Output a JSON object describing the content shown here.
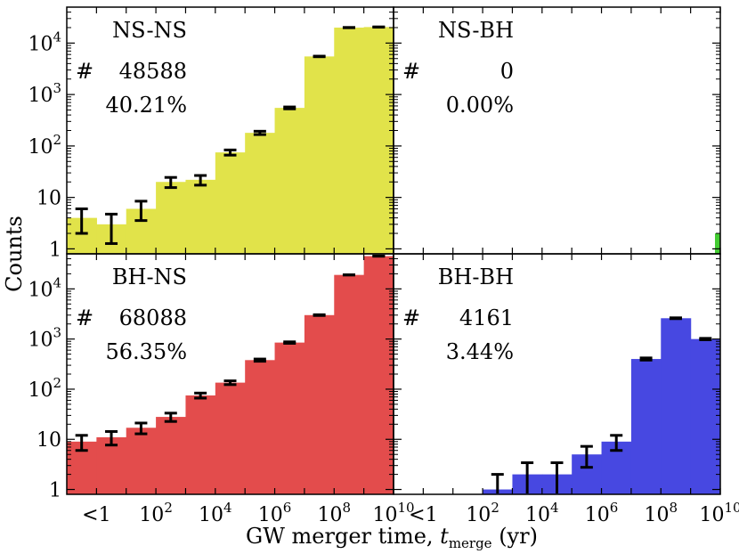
{
  "figure": {
    "ylabel": "Counts",
    "xlabel_prefix": "GW merger time, ",
    "xlabel_var": "t",
    "xlabel_sub": "merge",
    "xlabel_suffix": " (yr)"
  },
  "colors": {
    "NS-NS": "#e1e34a",
    "NS-BH": "#44cc33",
    "BH-NS": "#e34c4c",
    "BH-BH": "#4748e1",
    "errorbar": "#000000"
  },
  "chart_data": [
    {
      "type": "bar",
      "panel": "NS-NS",
      "label": "NS-NS",
      "count_text": "48588",
      "percent_text": "40.21%",
      "x_edges_log10": [
        -1,
        0,
        1,
        2,
        3,
        4,
        5,
        6,
        7,
        8,
        9,
        10
      ],
      "values": [
        4,
        3,
        6,
        20,
        22,
        75,
        180,
        550,
        5500,
        20000,
        20500
      ],
      "yscale": "log",
      "ylim": [
        0.8,
        50000
      ]
    },
    {
      "type": "bar",
      "panel": "NS-BH",
      "label": "NS-BH",
      "count_text": "0",
      "percent_text": "0.00%",
      "x_edges_log10": [
        -1,
        0,
        1,
        2,
        3,
        4,
        5,
        6,
        7,
        8,
        9,
        10
      ],
      "values": [
        0,
        0,
        0,
        0,
        0,
        0,
        0,
        0,
        0,
        0,
        0
      ],
      "yscale": "log",
      "ylim": [
        0.8,
        50000
      ]
    },
    {
      "type": "bar",
      "panel": "BH-NS",
      "label": "BH-NS",
      "count_text": "68088",
      "percent_text": "56.35%",
      "x_edges_log10": [
        -1,
        0,
        1,
        2,
        3,
        4,
        5,
        6,
        7,
        8,
        9,
        10
      ],
      "values": [
        9,
        11,
        17,
        28,
        75,
        135,
        380,
        850,
        3000,
        19000,
        45000
      ],
      "yscale": "log",
      "ylim": [
        0.8,
        50000
      ]
    },
    {
      "type": "bar",
      "panel": "BH-BH",
      "label": "BH-BH",
      "count_text": "4161",
      "percent_text": "3.44%",
      "x_edges_log10": [
        -1,
        0,
        1,
        2,
        3,
        4,
        5,
        6,
        7,
        8,
        9,
        10
      ],
      "values": [
        0,
        0,
        0,
        1,
        2,
        2,
        5,
        9,
        400,
        2600,
        1000
      ],
      "yscale": "log",
      "ylim": [
        0.8,
        50000
      ]
    }
  ],
  "y_ticks": [
    {
      "value": 1,
      "base": "1",
      "exp": ""
    },
    {
      "value": 10,
      "base": "10",
      "exp": ""
    },
    {
      "value": 100,
      "base": "10",
      "exp": "2"
    },
    {
      "value": 1000,
      "base": "10",
      "exp": "3"
    },
    {
      "value": 10000,
      "base": "10",
      "exp": "4"
    }
  ],
  "x_ticks": [
    {
      "value_log10": 0,
      "base": "<1",
      "exp": ""
    },
    {
      "value_log10": 2,
      "base": "10",
      "exp": "2"
    },
    {
      "value_log10": 4,
      "base": "10",
      "exp": "4"
    },
    {
      "value_log10": 6,
      "base": "10",
      "exp": "6"
    },
    {
      "value_log10": 8,
      "base": "10",
      "exp": "8"
    },
    {
      "value_log10": 10,
      "base": "10",
      "exp": "10"
    }
  ]
}
